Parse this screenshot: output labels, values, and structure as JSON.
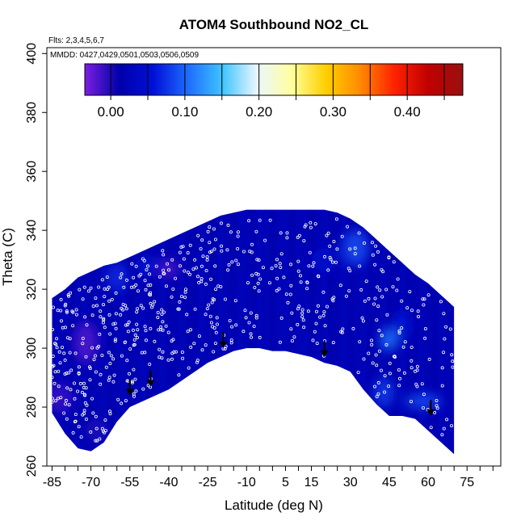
{
  "chart_data": {
    "type": "heatmap",
    "title": "ATOM4 Southbound NO2_CL",
    "xlabel": "Latitude (deg N)",
    "ylabel": "Theta (C)",
    "annotations": {
      "flights": "Flts: 2,3,4,5,6,7",
      "dates": "MMDD: 0427,0429,0501,0503,0506,0509"
    },
    "xlim": [
      -87,
      88
    ],
    "ylim": [
      260,
      402
    ],
    "x_ticks": [
      -85,
      -70,
      -55,
      -40,
      -25,
      -10,
      5,
      15,
      30,
      45,
      60,
      75
    ],
    "y_ticks": [
      260,
      280,
      300,
      320,
      340,
      360,
      380,
      400
    ],
    "colorbar": {
      "range": [
        -0.035,
        0.475
      ],
      "ticks": [
        0.0,
        0.1,
        0.2,
        0.3,
        0.4
      ],
      "tick_labels": [
        "0.00",
        "0.10",
        "0.20",
        "0.30",
        "0.40"
      ],
      "boundaries": [
        0.0,
        0.05,
        0.1,
        0.15,
        0.2,
        0.25,
        0.3,
        0.35,
        0.4,
        0.45
      ],
      "colors": [
        "#7b1fe0",
        "#0000aa",
        "#0010d8",
        "#1e6cff",
        "#3ec4ff",
        "#eaf6ff",
        "#ffffa0",
        "#ffd000",
        "#ff8c00",
        "#ff2200",
        "#c00000",
        "#9a1010"
      ]
    },
    "data_envelope": {
      "lat": [
        -85,
        -80,
        -75,
        -70,
        -65,
        -60,
        -55,
        -50,
        -45,
        -40,
        -35,
        -30,
        -25,
        -20,
        -15,
        -10,
        -5,
        0,
        5,
        10,
        15,
        20,
        25,
        30,
        35,
        40,
        45,
        50,
        55,
        60,
        65,
        70
      ],
      "theta_top": [
        317,
        320,
        324,
        326,
        328,
        329,
        331,
        333,
        335,
        337,
        339,
        341,
        343,
        345,
        346,
        347,
        347,
        347,
        347,
        347,
        347,
        347,
        346,
        344,
        341,
        337,
        333,
        329,
        325,
        322,
        318,
        314
      ],
      "theta_bottom": [
        278,
        271,
        266,
        265,
        268,
        275,
        280,
        282,
        284,
        286,
        289,
        292,
        295,
        297,
        299,
        300,
        300,
        299,
        299,
        298,
        297,
        295,
        294,
        292,
        286,
        281,
        277,
        277,
        276,
        272,
        268,
        264
      ]
    },
    "background_value": 0.02,
    "features": [
      {
        "lat": -72,
        "theta": 302,
        "value": -0.02,
        "width": 9,
        "height": 14
      },
      {
        "lat": -82,
        "theta": 283,
        "value": -0.01,
        "width": 10,
        "height": 10
      },
      {
        "lat": -68,
        "theta": 272,
        "value": 0.0,
        "width": 8,
        "height": 8
      },
      {
        "lat": -40,
        "theta": 327,
        "value": -0.02,
        "width": 8,
        "height": 6
      },
      {
        "lat": -60,
        "theta": 324,
        "value": 0.07,
        "width": 8,
        "height": 10
      },
      {
        "lat": -48,
        "theta": 328,
        "value": 0.06,
        "width": 7,
        "height": 6
      },
      {
        "lat": 32,
        "theta": 334,
        "value": 0.09,
        "width": 10,
        "height": 12
      },
      {
        "lat": 45,
        "theta": 303,
        "value": 0.11,
        "width": 7,
        "height": 8
      },
      {
        "lat": 43,
        "theta": 285,
        "value": 0.08,
        "width": 8,
        "height": 10
      },
      {
        "lat": 58,
        "theta": 282,
        "value": 0.09,
        "width": 14,
        "height": 5
      },
      {
        "lat": 50,
        "theta": 308,
        "value": 0.06,
        "width": 6,
        "height": 10
      },
      {
        "lat": 20,
        "theta": 330,
        "value": 0.05,
        "width": 10,
        "height": 8
      }
    ],
    "arrows": [
      {
        "lat": -55,
        "theta": 284
      },
      {
        "lat": -47,
        "theta": 287
      },
      {
        "lat": -19,
        "theta": 300
      },
      {
        "lat": 20,
        "theta": 297
      },
      {
        "lat": 61,
        "theta": 277
      }
    ],
    "sample_points": {
      "count": 620,
      "marker": "hollow white circle"
    }
  }
}
